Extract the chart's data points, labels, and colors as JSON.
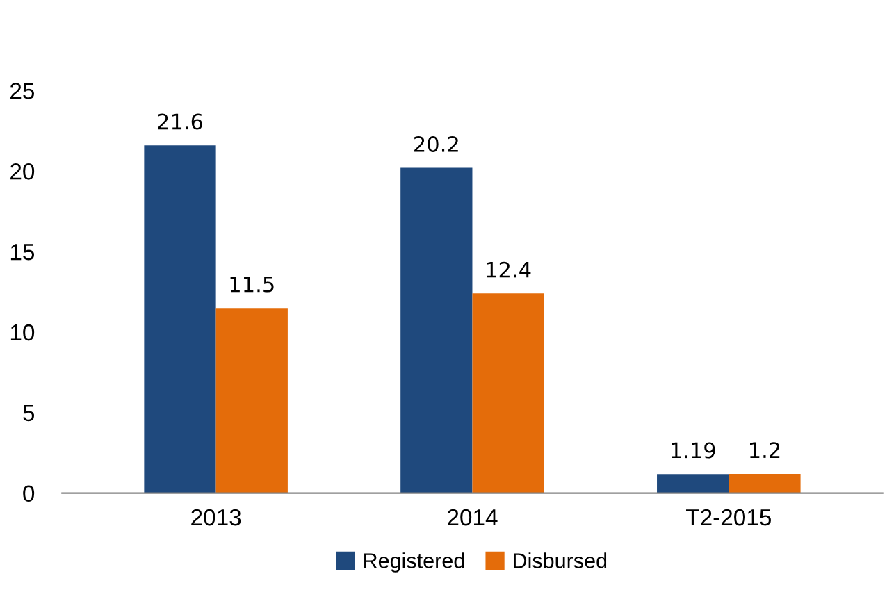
{
  "chart_data": {
    "type": "bar",
    "categories": [
      "2013",
      "2014",
      "T2-2015"
    ],
    "series": [
      {
        "name": "Registered",
        "color": "#1f497d",
        "values": [
          21.6,
          20.2,
          1.19
        ]
      },
      {
        "name": "Disbursed",
        "color": "#e46c0a",
        "values": [
          11.5,
          12.4,
          1.2
        ]
      }
    ],
    "ylim": [
      0,
      25
    ],
    "yticks": [
      0,
      5,
      10,
      15,
      20,
      25
    ],
    "data_labels": true,
    "legend": "bottom",
    "grid": false
  }
}
